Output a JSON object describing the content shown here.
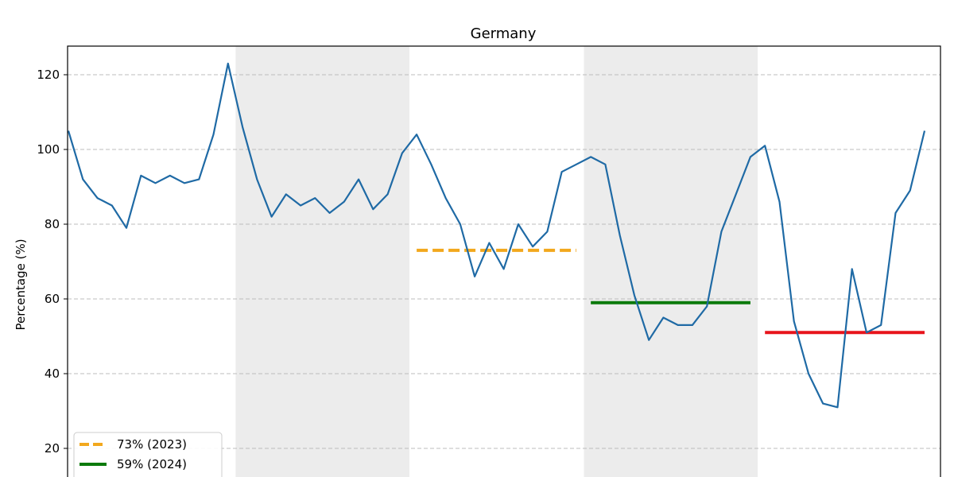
{
  "chart_data": {
    "type": "line",
    "title": "Germany",
    "ylabel": "Percentage (%)",
    "xlabel": "",
    "ylim": [
      12,
      127
    ],
    "yticks": [
      20,
      40,
      60,
      80,
      100,
      120
    ],
    "grid": "horizontal-dashed",
    "legend_placement": "bottom-left",
    "series": [
      {
        "color": "#1f6aa5",
        "values": [
          105,
          92,
          87,
          85,
          79,
          93,
          91,
          93,
          91,
          92,
          104,
          123,
          106,
          92,
          82,
          88,
          85,
          87,
          83,
          86,
          92,
          84,
          88,
          99,
          104,
          96,
          87,
          80,
          66,
          75,
          68,
          80,
          74,
          78,
          94,
          96,
          98,
          96,
          77,
          61,
          49,
          55,
          53,
          53,
          58,
          78,
          88,
          98,
          101,
          86,
          54,
          40,
          32,
          31,
          68,
          51,
          53,
          83,
          89,
          105
        ]
      }
    ],
    "shaded_periods": [
      {
        "start_index": 12,
        "end_index": 24
      },
      {
        "start_index": 36,
        "end_index": 48
      }
    ],
    "reference_lines": [
      {
        "label": "73% (2023)",
        "value": 73,
        "start_index": 24,
        "end_index": 35,
        "color": "#f2a81d",
        "style": "dashed"
      },
      {
        "label": "59% (2024)",
        "value": 59,
        "start_index": 36,
        "end_index": 47,
        "color": "#0b7a0b",
        "style": "solid"
      },
      {
        "value": 51,
        "start_index": 48,
        "end_index": 59,
        "color": "#e8141c",
        "style": "solid"
      }
    ]
  }
}
